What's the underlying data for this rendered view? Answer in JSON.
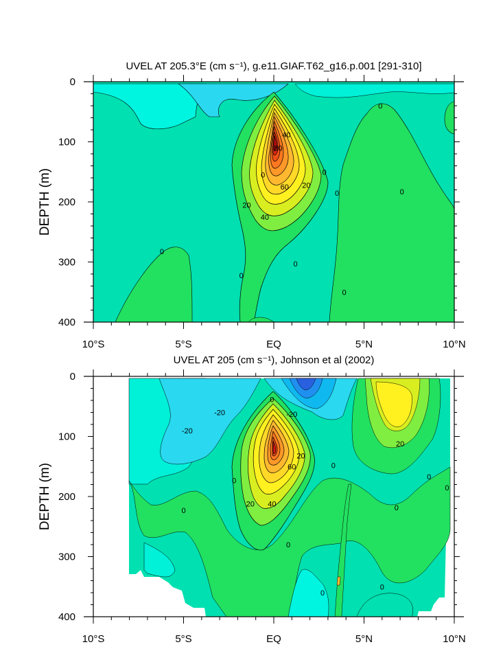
{
  "chart_data": [
    {
      "type": "heatmap",
      "title": "UVEL AT 205.3°E (cm s⁻¹), g.e11.GIAF.T62_g16.p.001 [291-310]",
      "ylabel": "DEPTH (m)",
      "xlabel": "",
      "xlim": [
        -10,
        10
      ],
      "ylim": [
        400,
        0
      ],
      "x_ticks": [
        -10,
        -5,
        0,
        5,
        10
      ],
      "x_tick_labels": [
        "10°S",
        "5°S",
        "EQ",
        "5°N",
        "10°N"
      ],
      "y_ticks": [
        0,
        100,
        200,
        300,
        400
      ],
      "y_tick_labels": [
        "0",
        "100",
        "200",
        "300",
        "400"
      ],
      "contour_interval": 10,
      "contour_labels": [
        {
          "text": "0",
          "lat": -0.6,
          "depth": 155
        },
        {
          "text": "0",
          "lat": 2.8,
          "depth": 150
        },
        {
          "text": "0",
          "lat": 3.5,
          "depth": 185
        },
        {
          "text": "0",
          "lat": 5.9,
          "depth": 40
        },
        {
          "text": "0",
          "lat": 7.1,
          "depth": 183
        },
        {
          "text": "0",
          "lat": -6.2,
          "depth": 282
        },
        {
          "text": "0",
          "lat": 1.2,
          "depth": 303
        },
        {
          "text": "0",
          "lat": -1.8,
          "depth": 322
        },
        {
          "text": "0",
          "lat": 3.9,
          "depth": 350
        },
        {
          "text": "20",
          "lat": -1.5,
          "depth": 205
        },
        {
          "text": "20",
          "lat": 1.8,
          "depth": 172
        },
        {
          "text": "40",
          "lat": -0.5,
          "depth": 225
        },
        {
          "text": "40",
          "lat": 0.7,
          "depth": 88
        },
        {
          "text": "60",
          "lat": 0.6,
          "depth": 175
        },
        {
          "text": "80",
          "lat": 0.25,
          "depth": 110
        }
      ]
    },
    {
      "type": "heatmap",
      "title": "UVEL AT 205 (cm s⁻¹), Johnson et al (2002)",
      "ylabel": "DEPTH (m)",
      "xlabel": "",
      "xlim": [
        -10,
        10
      ],
      "ylim": [
        400,
        0
      ],
      "x_ticks": [
        -10,
        -5,
        0,
        5,
        10
      ],
      "x_tick_labels": [
        "10°S",
        "5°S",
        "EQ",
        "5°N",
        "10°N"
      ],
      "y_ticks": [
        0,
        100,
        200,
        300,
        400
      ],
      "y_tick_labels": [
        "0",
        "100",
        "200",
        "300",
        "400"
      ],
      "contour_interval": 10,
      "data_extent_lat": [
        -8,
        9.8
      ],
      "contour_labels": [
        {
          "text": "-20",
          "lat": -4.8,
          "depth": 90
        },
        {
          "text": "-20",
          "lat": -3.0,
          "depth": 60
        },
        {
          "text": "-20",
          "lat": 1.0,
          "depth": 63
        },
        {
          "text": "0",
          "lat": -0.1,
          "depth": 38
        },
        {
          "text": "0",
          "lat": -2.2,
          "depth": 173
        },
        {
          "text": "0",
          "lat": -5.0,
          "depth": 223
        },
        {
          "text": "0",
          "lat": 3.3,
          "depth": 148
        },
        {
          "text": "0",
          "lat": 6.8,
          "depth": 218
        },
        {
          "text": "0",
          "lat": 8.6,
          "depth": 167
        },
        {
          "text": "0",
          "lat": 9.6,
          "depth": 185
        },
        {
          "text": "0",
          "lat": 0.8,
          "depth": 280
        },
        {
          "text": "0",
          "lat": 2.7,
          "depth": 360
        },
        {
          "text": "0",
          "lat": 6.0,
          "depth": 350
        },
        {
          "text": "20",
          "lat": 7.0,
          "depth": 112
        },
        {
          "text": "20",
          "lat": 1.5,
          "depth": 132
        },
        {
          "text": "20",
          "lat": -1.3,
          "depth": 212
        },
        {
          "text": "40",
          "lat": -0.1,
          "depth": 212
        },
        {
          "text": "60",
          "lat": 1.0,
          "depth": 150
        }
      ]
    }
  ]
}
